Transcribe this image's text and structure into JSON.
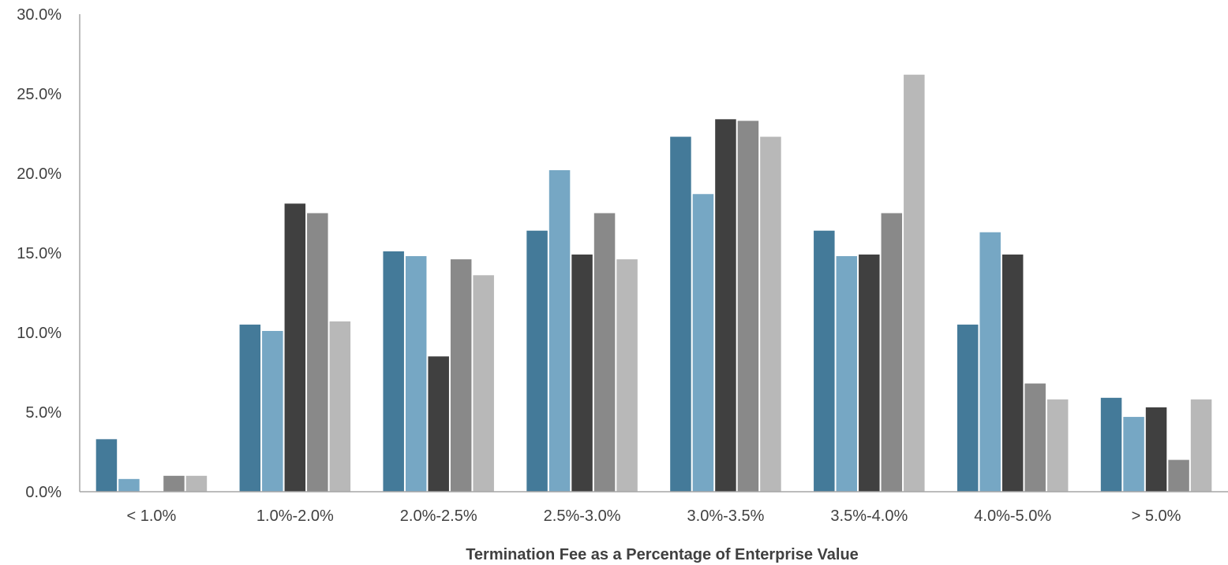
{
  "chart_data": {
    "type": "bar",
    "title": "",
    "xlabel": "Termination Fee as a Percentage of Enterprise Value",
    "ylabel": "",
    "ylim": [
      0,
      30
    ],
    "yticks": [
      "0.0%",
      "5.0%",
      "10.0%",
      "15.0%",
      "20.0%",
      "25.0%",
      "30.0%"
    ],
    "grid": false,
    "legend": "none",
    "categories": [
      "< 1.0%",
      "1.0%-2.0%",
      "2.0%-2.5%",
      "2.5%-3.0%",
      "3.0%-3.5%",
      "3.5%-4.0%",
      "4.0%-5.0%",
      "> 5.0%"
    ],
    "series": [
      {
        "color": "#447a99",
        "values": [
          3.3,
          10.5,
          15.1,
          16.4,
          22.3,
          16.4,
          10.5,
          5.9
        ]
      },
      {
        "color": "#76a7c4",
        "values": [
          0.8,
          10.1,
          14.8,
          20.2,
          18.7,
          14.8,
          16.3,
          4.7
        ]
      },
      {
        "color": "#404040",
        "values": [
          0.0,
          18.1,
          8.5,
          14.9,
          23.4,
          14.9,
          14.9,
          5.3
        ]
      },
      {
        "color": "#898989",
        "values": [
          1.0,
          17.5,
          14.6,
          17.5,
          23.3,
          17.5,
          6.8,
          2.0
        ]
      },
      {
        "color": "#b8b8b8",
        "values": [
          1.0,
          10.7,
          13.6,
          14.6,
          22.3,
          26.2,
          5.8,
          5.8
        ]
      }
    ]
  }
}
